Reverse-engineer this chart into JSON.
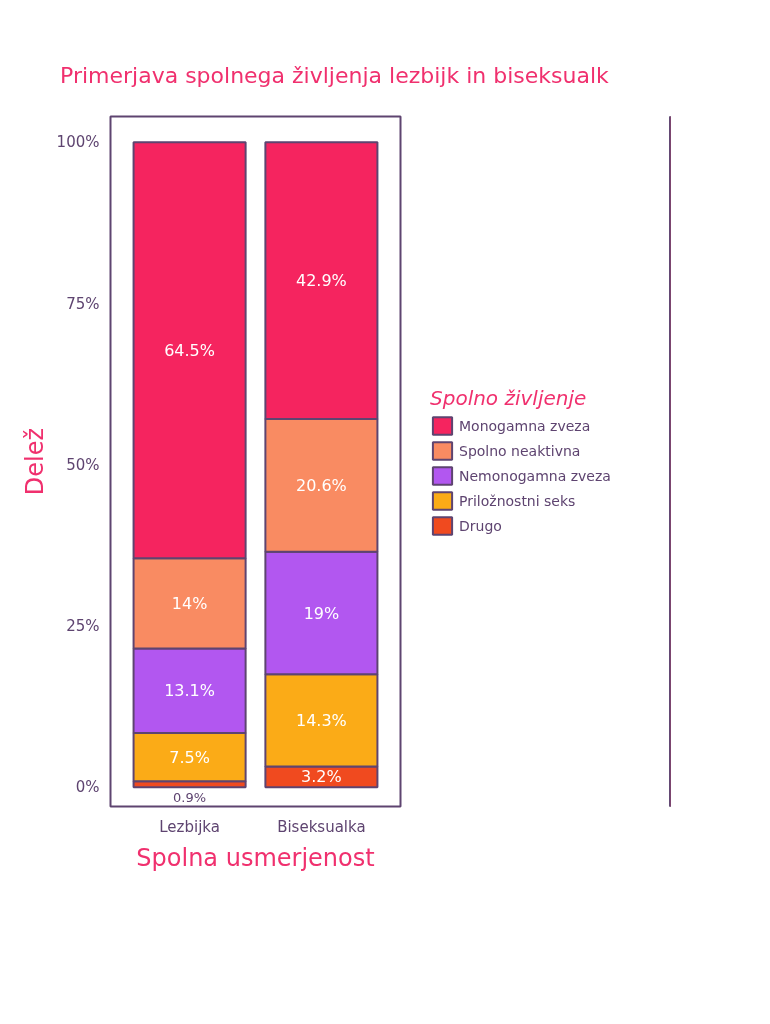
{
  "chart_data": {
    "type": "bar",
    "title": "Primerjava spolnega življenja  lezbijk in biseksualk",
    "xlabel": "Spolna usmerjenost",
    "ylabel": "Delež",
    "legend_title": "Spolno življenje",
    "categories": [
      "Lezbijka",
      "Biseksualka"
    ],
    "stacked": true,
    "series": [
      {
        "name": "Drugo",
        "color": "#f04a1f",
        "values": [
          0.9,
          3.2
        ],
        "value_labels": [
          "0.9%",
          "3.2%"
        ]
      },
      {
        "name": "Priložnostni seks",
        "color": "#fbab17",
        "values": [
          7.5,
          14.3
        ],
        "value_labels": [
          "7.5%",
          "14.3%"
        ]
      },
      {
        "name": "Nemonogamna zveza",
        "color": "#b257f0",
        "values": [
          13.1,
          19
        ],
        "value_labels": [
          "13.1%",
          "19%"
        ]
      },
      {
        "name": "Spolno neaktivna",
        "color": "#f98b62",
        "values": [
          14,
          20.6
        ],
        "value_labels": [
          "14%",
          "20.6%"
        ]
      },
      {
        "name": "Monogamna zveza",
        "color": "#f5245f",
        "values": [
          64.5,
          42.9
        ],
        "value_labels": [
          "64.5%",
          "42.9%"
        ]
      }
    ],
    "ylim": [
      -3,
      104
    ],
    "yticks": [
      {
        "value": 0,
        "label": "0%"
      },
      {
        "value": 25,
        "label": "25%"
      },
      {
        "value": 50,
        "label": "50%"
      },
      {
        "value": 75,
        "label": "75%"
      },
      {
        "value": 100,
        "label": "100%"
      }
    ],
    "grid": false,
    "legend": "right"
  }
}
